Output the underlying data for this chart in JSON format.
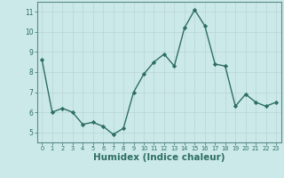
{
  "x": [
    0,
    1,
    2,
    3,
    4,
    5,
    6,
    7,
    8,
    9,
    10,
    11,
    12,
    13,
    14,
    15,
    16,
    17,
    18,
    19,
    20,
    21,
    22,
    23
  ],
  "y": [
    8.6,
    6.0,
    6.2,
    6.0,
    5.4,
    5.5,
    5.3,
    4.9,
    5.2,
    7.0,
    7.9,
    8.5,
    8.9,
    8.3,
    10.2,
    11.1,
    10.3,
    8.4,
    8.3,
    6.3,
    6.9,
    6.5,
    6.3,
    6.5
  ],
  "line_color": "#2d6e63",
  "marker": "D",
  "marker_size": 2.2,
  "linewidth": 1.0,
  "xlabel": "Humidex (Indice chaleur)",
  "xlabel_fontsize": 7.5,
  "xlim": [
    -0.5,
    23.5
  ],
  "ylim": [
    4.5,
    11.5
  ],
  "yticks": [
    5,
    6,
    7,
    8,
    9,
    10,
    11
  ],
  "xticks": [
    0,
    1,
    2,
    3,
    4,
    5,
    6,
    7,
    8,
    9,
    10,
    11,
    12,
    13,
    14,
    15,
    16,
    17,
    18,
    19,
    20,
    21,
    22,
    23
  ],
  "xtick_labels": [
    "0",
    "1",
    "2",
    "3",
    "4",
    "5",
    "6",
    "7",
    "8",
    "9",
    "10",
    "11",
    "12",
    "13",
    "14",
    "15",
    "16",
    "17",
    "18",
    "19",
    "20",
    "21",
    "22",
    "23"
  ],
  "bg_color": "#cce9e9",
  "grid_color": "#b8d4d4",
  "spine_color": "#5a8a8a"
}
